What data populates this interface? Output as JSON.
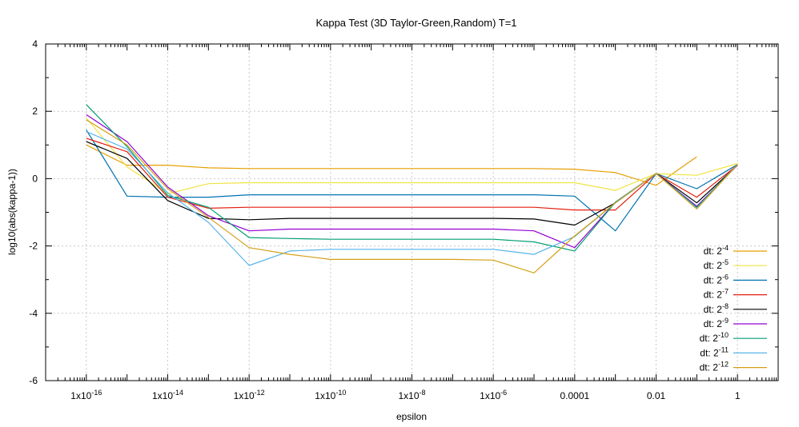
{
  "chart_data": {
    "type": "line",
    "title": "Kappa Test (3D Taylor-Green,Random) T=1",
    "xlabel": "epsilon",
    "ylabel": "log10(abs(kappa-1))",
    "x_scale": "log",
    "xlim": [
      1e-17,
      10
    ],
    "ylim": [
      -6,
      4
    ],
    "x_ticks": [
      {
        "value": 1e-16,
        "label": "1x10",
        "exp": "-16"
      },
      {
        "value": 1e-14,
        "label": "1x10",
        "exp": "-14"
      },
      {
        "value": 1e-12,
        "label": "1x10",
        "exp": "-12"
      },
      {
        "value": 1e-10,
        "label": "1x10",
        "exp": "-10"
      },
      {
        "value": 1e-08,
        "label": "1x10",
        "exp": "-8"
      },
      {
        "value": 1e-06,
        "label": "1x10",
        "exp": "-6"
      },
      {
        "value": 0.0001,
        "label": "0.0001",
        "exp": ""
      },
      {
        "value": 0.01,
        "label": "0.01",
        "exp": ""
      },
      {
        "value": 1,
        "label": "1",
        "exp": ""
      }
    ],
    "y_ticks": [
      {
        "value": 4,
        "label": "4"
      },
      {
        "value": 2,
        "label": "2"
      },
      {
        "value": 0,
        "label": "0"
      },
      {
        "value": -2,
        "label": "-2"
      },
      {
        "value": -4,
        "label": "-4"
      },
      {
        "value": -6,
        "label": "-6"
      }
    ],
    "grid": true,
    "legend_position": "bottom-right",
    "x": [
      1e-16,
      1e-15,
      1e-14,
      1e-13,
      1e-12,
      1e-11,
      1e-10,
      1e-09,
      1e-08,
      1e-07,
      1e-06,
      1e-05,
      0.0001,
      0.001,
      0.01,
      0.1,
      1
    ],
    "series": [
      {
        "name": "dt: 2",
        "exp": "-4",
        "color": "#e69f00",
        "values": [
          1.0,
          0.4,
          0.4,
          0.32,
          0.3,
          0.3,
          0.3,
          0.3,
          0.3,
          0.3,
          0.3,
          0.3,
          0.28,
          0.18,
          -0.2,
          0.65,
          null
        ]
      },
      {
        "name": "dt: 2",
        "exp": "-5",
        "color": "#f0e442",
        "values": [
          1.8,
          0.35,
          -0.45,
          -0.15,
          -0.12,
          -0.12,
          -0.12,
          -0.12,
          -0.12,
          -0.12,
          -0.12,
          -0.12,
          -0.12,
          -0.35,
          0.15,
          0.1,
          0.45
        ]
      },
      {
        "name": "dt: 2",
        "exp": "-6",
        "color": "#0072b2",
        "values": [
          1.45,
          -0.52,
          -0.55,
          -0.55,
          -0.48,
          -0.48,
          -0.48,
          -0.48,
          -0.48,
          -0.48,
          -0.48,
          -0.48,
          -0.52,
          -1.55,
          0.15,
          -0.3,
          0.42
        ]
      },
      {
        "name": "dt: 2",
        "exp": "-7",
        "color": "#e51e10",
        "values": [
          1.2,
          0.8,
          -0.55,
          -0.88,
          -0.85,
          -0.85,
          -0.85,
          -0.85,
          -0.85,
          -0.85,
          -0.85,
          -0.85,
          -0.93,
          -0.93,
          0.15,
          -0.55,
          0.4
        ]
      },
      {
        "name": "dt: 2",
        "exp": "-8",
        "color": "#000000",
        "values": [
          1.1,
          0.6,
          -0.65,
          -1.18,
          -1.22,
          -1.18,
          -1.18,
          -1.18,
          -1.18,
          -1.18,
          -1.18,
          -1.2,
          -1.38,
          -0.72,
          0.15,
          -0.72,
          0.4
        ]
      },
      {
        "name": "dt: 2",
        "exp": "-9",
        "color": "#9400d3",
        "values": [
          1.9,
          1.1,
          -0.25,
          -1.1,
          -1.55,
          -1.5,
          -1.5,
          -1.5,
          -1.5,
          -1.5,
          -1.5,
          -1.55,
          -2.05,
          -0.7,
          0.15,
          -0.82,
          0.4
        ]
      },
      {
        "name": "dt: 2",
        "exp": "-10",
        "color": "#009e73",
        "values": [
          2.2,
          0.95,
          -0.5,
          -0.85,
          -1.75,
          -1.78,
          -1.8,
          -1.8,
          -1.8,
          -1.8,
          -1.8,
          -1.88,
          -2.15,
          -0.7,
          0.15,
          -0.85,
          0.42
        ]
      },
      {
        "name": "dt: 2",
        "exp": "-11",
        "color": "#56b4e9",
        "values": [
          1.4,
          0.88,
          -0.42,
          -1.3,
          -2.58,
          -2.15,
          -2.1,
          -2.1,
          -2.1,
          -2.1,
          -2.1,
          -2.25,
          -1.72,
          -0.72,
          0.15,
          -0.88,
          0.42
        ]
      },
      {
        "name": "dt: 2",
        "exp": "-12",
        "color": "#d4a017",
        "values": [
          1.75,
          1.0,
          -0.3,
          -1.15,
          -2.05,
          -2.25,
          -2.4,
          -2.4,
          -2.4,
          -2.4,
          -2.42,
          -2.8,
          -1.7,
          -0.72,
          0.15,
          -0.9,
          0.42
        ]
      }
    ]
  }
}
